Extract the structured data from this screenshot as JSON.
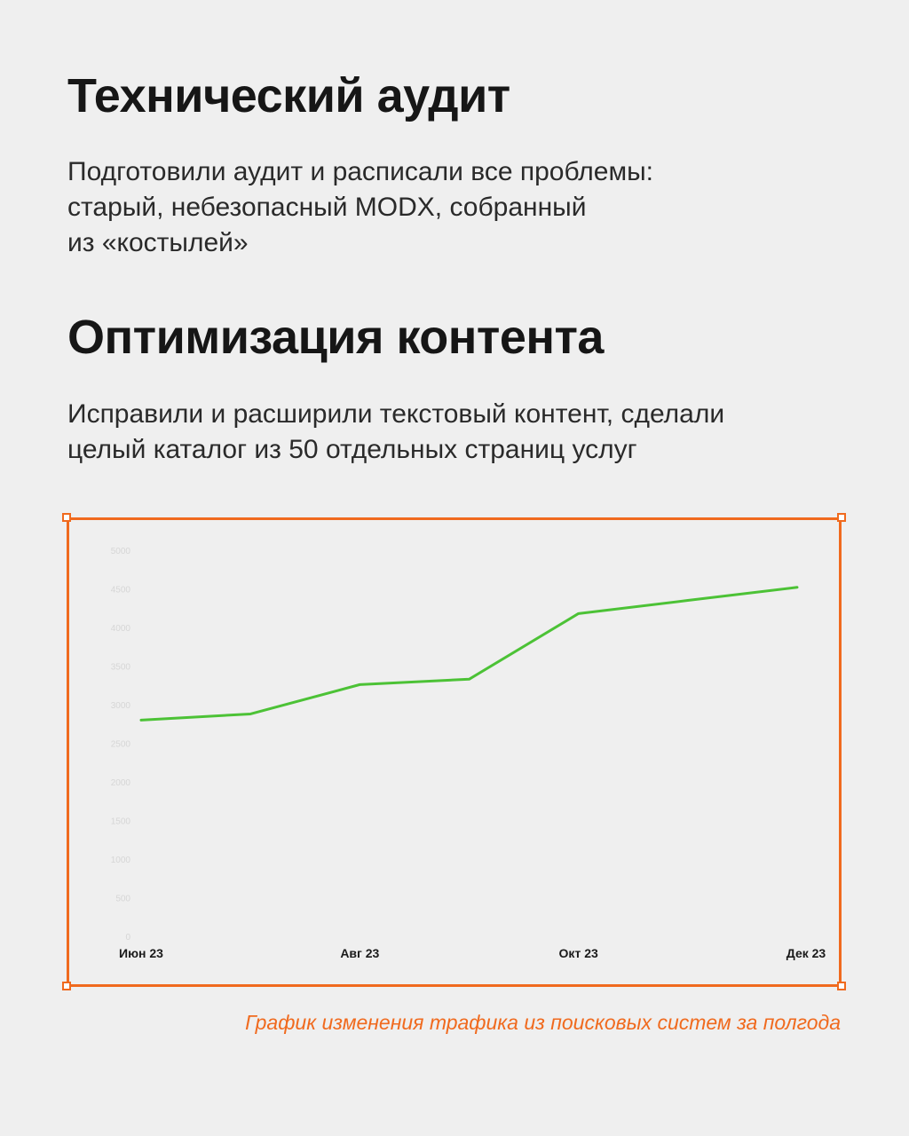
{
  "section1": {
    "title": "Технический аудит",
    "lines": [
      "Подготовили аудит и расписали все проблемы:",
      "старый, небезопасный MODX, собранный",
      "из «костылей»"
    ]
  },
  "section2": {
    "title": "Оптимизация контента",
    "lines": [
      "Исправили и расширили текстовый контент, сделали",
      "целый каталог из 50 отдельных страниц услуг"
    ]
  },
  "caption": "График изменения трафика из поисковых систем за полгода",
  "colors": {
    "accent": "#f06a1e",
    "line": "#4cc236",
    "grid_top_left": "#4a55d0",
    "grid_bottom_right": "#1f7fe0"
  },
  "chart_data": {
    "type": "line",
    "x_labels": [
      "Июн 23",
      "Авг 23",
      "Окт 23",
      "Дек 23"
    ],
    "y_tick_labels": [
      "0",
      "500",
      "1000",
      "1500",
      "2000",
      "2500",
      "3000",
      "3500",
      "4000",
      "4500",
      "5000"
    ],
    "ylim": [
      0,
      5000
    ],
    "grid": true,
    "series": [
      {
        "x": [
          0,
          1,
          2,
          3,
          4,
          5,
          6
        ],
        "values": [
          2800,
          2880,
          3260,
          3330,
          4180,
          4350,
          4520
        ]
      }
    ]
  }
}
